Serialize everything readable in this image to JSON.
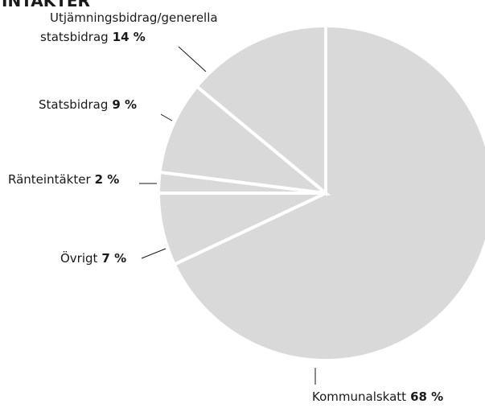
{
  "chart_data": {
    "type": "pie",
    "title": "INTÄKTER",
    "categories": [
      "Kommunalskatt",
      "Övrigt",
      "Ränteintäkter",
      "Statsbidrag",
      "Utjämningsbidrag/generella statsbidrag"
    ],
    "values": [
      68,
      7,
      2,
      9,
      14
    ],
    "value_labels": [
      "68 %",
      "7 %",
      "2 %",
      "9 %",
      "14 %"
    ],
    "color": "#d9d9d9"
  }
}
